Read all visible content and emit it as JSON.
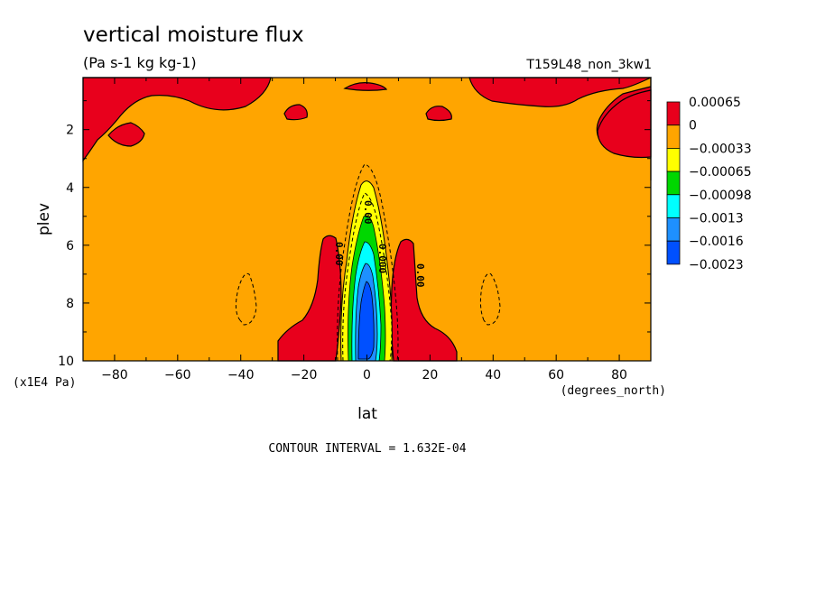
{
  "chart_data": {
    "type": "contour",
    "title": "vertical moisture flux",
    "units": "(Pa s-1 kg kg-1)",
    "run_label": "T159L48_non_3kw1",
    "xlabel": "lat",
    "x_units": "(degrees_north)",
    "ylabel": "plev",
    "y_units": "(x1E4 Pa)",
    "xlim": [
      -90,
      90
    ],
    "ylim": [
      10,
      0.2
    ],
    "x_ticks": [
      -80,
      -60,
      -40,
      -20,
      0,
      20,
      40,
      60,
      80
    ],
    "y_ticks": [
      2,
      4,
      6,
      8,
      10
    ],
    "contour_interval": "CONTOUR INTERVAL = 1.632E-04",
    "legend": {
      "placement": "right",
      "levels": [
        "0.00065",
        "0",
        "-0.00033",
        "-0.00065",
        "-0.00098",
        "-0.0013",
        "-0.0016",
        "-0.0023"
      ],
      "colors": [
        "#e8001c",
        "#ffa500",
        "#ffff00",
        "#00d700",
        "#00ffff",
        "#1e90ff",
        "#0050ff"
      ]
    },
    "contour_labels": [
      "0.00",
      "0.00",
      "0.000",
      "0.00"
    ],
    "background_color": "#ffa500"
  }
}
